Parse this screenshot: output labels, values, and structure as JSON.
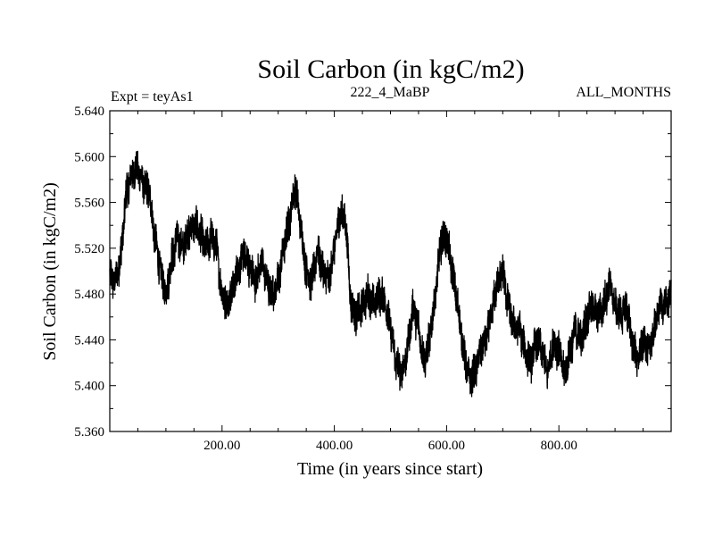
{
  "chart_data": {
    "type": "line",
    "title": "Soil Carbon (in kgC/m2)",
    "subtitle_left": "Expt = teyAs1",
    "subtitle_center": "222_4_MaBP",
    "subtitle_right": "ALL_MONTHS",
    "xlabel": "Time (in years since start)",
    "ylabel": "Soil Carbon (in kgC/m2)",
    "xlim": [
      0,
      1000
    ],
    "ylim": [
      5.36,
      5.64
    ],
    "x_ticks": [
      200,
      400,
      600,
      800
    ],
    "x_tick_labels": [
      "200.00",
      "400.00",
      "600.00",
      "800.00"
    ],
    "y_ticks": [
      5.36,
      5.4,
      5.44,
      5.48,
      5.52,
      5.56,
      5.6,
      5.64
    ],
    "y_tick_labels": [
      "5.360",
      "5.400",
      "5.440",
      "5.480",
      "5.520",
      "5.560",
      "5.600",
      "5.640"
    ],
    "noise_amplitude": 0.014,
    "envelope": [
      [
        0,
        5.495
      ],
      [
        10,
        5.49
      ],
      [
        20,
        5.515
      ],
      [
        30,
        5.57
      ],
      [
        40,
        5.585
      ],
      [
        50,
        5.59
      ],
      [
        60,
        5.575
      ],
      [
        70,
        5.57
      ],
      [
        80,
        5.53
      ],
      [
        90,
        5.5
      ],
      [
        100,
        5.48
      ],
      [
        110,
        5.51
      ],
      [
        120,
        5.53
      ],
      [
        130,
        5.52
      ],
      [
        140,
        5.535
      ],
      [
        150,
        5.54
      ],
      [
        160,
        5.535
      ],
      [
        170,
        5.52
      ],
      [
        180,
        5.53
      ],
      [
        190,
        5.52
      ],
      [
        200,
        5.48
      ],
      [
        210,
        5.47
      ],
      [
        220,
        5.49
      ],
      [
        230,
        5.5
      ],
      [
        240,
        5.52
      ],
      [
        250,
        5.5
      ],
      [
        260,
        5.49
      ],
      [
        270,
        5.51
      ],
      [
        280,
        5.49
      ],
      [
        290,
        5.48
      ],
      [
        300,
        5.49
      ],
      [
        310,
        5.52
      ],
      [
        320,
        5.545
      ],
      [
        330,
        5.575
      ],
      [
        340,
        5.54
      ],
      [
        350,
        5.5
      ],
      [
        360,
        5.49
      ],
      [
        370,
        5.52
      ],
      [
        380,
        5.5
      ],
      [
        390,
        5.49
      ],
      [
        400,
        5.52
      ],
      [
        410,
        5.55
      ],
      [
        420,
        5.545
      ],
      [
        430,
        5.47
      ],
      [
        440,
        5.46
      ],
      [
        450,
        5.47
      ],
      [
        460,
        5.48
      ],
      [
        470,
        5.47
      ],
      [
        480,
        5.48
      ],
      [
        490,
        5.475
      ],
      [
        500,
        5.45
      ],
      [
        510,
        5.42
      ],
      [
        520,
        5.41
      ],
      [
        530,
        5.43
      ],
      [
        540,
        5.47
      ],
      [
        550,
        5.45
      ],
      [
        560,
        5.42
      ],
      [
        570,
        5.44
      ],
      [
        580,
        5.48
      ],
      [
        590,
        5.525
      ],
      [
        600,
        5.53
      ],
      [
        610,
        5.5
      ],
      [
        620,
        5.47
      ],
      [
        630,
        5.43
      ],
      [
        640,
        5.405
      ],
      [
        650,
        5.41
      ],
      [
        660,
        5.43
      ],
      [
        670,
        5.44
      ],
      [
        680,
        5.46
      ],
      [
        690,
        5.49
      ],
      [
        700,
        5.5
      ],
      [
        710,
        5.47
      ],
      [
        720,
        5.45
      ],
      [
        730,
        5.45
      ],
      [
        740,
        5.43
      ],
      [
        750,
        5.42
      ],
      [
        760,
        5.44
      ],
      [
        770,
        5.43
      ],
      [
        780,
        5.41
      ],
      [
        790,
        5.44
      ],
      [
        800,
        5.43
      ],
      [
        810,
        5.41
      ],
      [
        820,
        5.43
      ],
      [
        830,
        5.45
      ],
      [
        840,
        5.44
      ],
      [
        850,
        5.46
      ],
      [
        860,
        5.47
      ],
      [
        870,
        5.46
      ],
      [
        880,
        5.47
      ],
      [
        890,
        5.49
      ],
      [
        900,
        5.47
      ],
      [
        910,
        5.46
      ],
      [
        920,
        5.47
      ],
      [
        930,
        5.44
      ],
      [
        940,
        5.42
      ],
      [
        950,
        5.44
      ],
      [
        960,
        5.43
      ],
      [
        970,
        5.45
      ],
      [
        980,
        5.47
      ],
      [
        990,
        5.47
      ],
      [
        1000,
        5.48
      ]
    ]
  }
}
